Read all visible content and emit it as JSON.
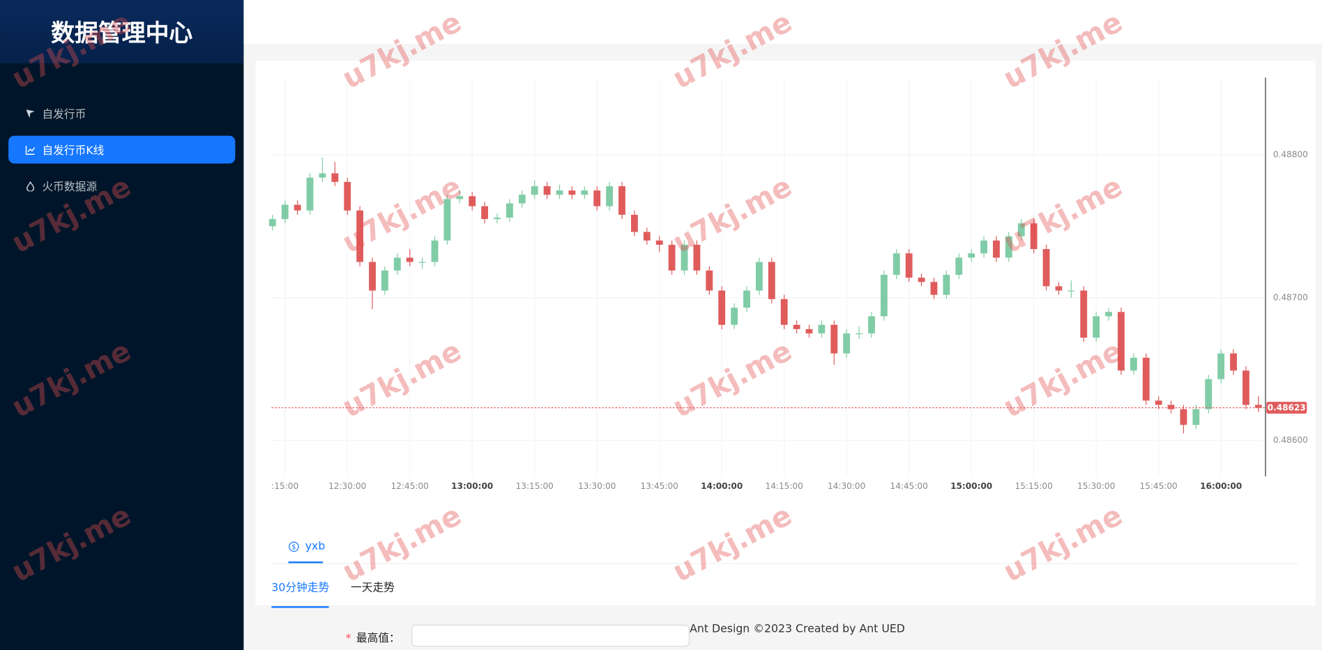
{
  "sidebar": {
    "title": "数据管理中心",
    "menu": [
      "自发行币",
      "自发行币K线",
      "火币数据源"
    ],
    "selected": 1
  },
  "watermark": "u7kj.me",
  "chart_data": {
    "type": "candlestick",
    "x": [
      "12:12:00",
      "12:15:00",
      "12:18:00",
      "12:21:00",
      "12:24:00",
      "12:27:00",
      "12:30:00",
      "12:33:00",
      "12:36:00",
      "12:39:00",
      "12:42:00",
      "12:45:00",
      "12:48:00",
      "12:51:00",
      "12:54:00",
      "12:57:00",
      "13:00:00",
      "13:03:00",
      "13:06:00",
      "13:09:00",
      "13:12:00",
      "13:15:00",
      "13:18:00",
      "13:21:00",
      "13:24:00",
      "13:27:00",
      "13:30:00",
      "13:33:00",
      "13:36:00",
      "13:39:00",
      "13:42:00",
      "13:45:00",
      "13:48:00",
      "13:51:00",
      "13:54:00",
      "13:57:00",
      "14:00:00",
      "14:03:00",
      "14:06:00",
      "14:09:00",
      "14:12:00",
      "14:15:00",
      "14:18:00",
      "14:21:00",
      "14:24:00",
      "14:27:00",
      "14:30:00",
      "14:33:00",
      "14:36:00",
      "14:39:00",
      "14:42:00",
      "14:45:00",
      "14:48:00",
      "14:51:00",
      "14:54:00",
      "14:57:00",
      "15:00:00",
      "15:03:00",
      "15:06:00",
      "15:09:00",
      "15:12:00",
      "15:15:00",
      "15:18:00",
      "15:21:00",
      "15:24:00",
      "15:27:00",
      "15:30:00",
      "15:33:00",
      "15:36:00",
      "15:39:00",
      "15:42:00",
      "15:45:00",
      "15:48:00",
      "15:51:00",
      "15:54:00",
      "15:57:00",
      "16:00:00",
      "16:03:00",
      "16:06:00",
      "16:09:00"
    ],
    "open": [
      0.4875,
      0.48755,
      0.48765,
      0.48761,
      0.48784,
      0.48787,
      0.48781,
      0.48761,
      0.48725,
      0.48705,
      0.48719,
      0.48728,
      0.48725,
      0.48725,
      0.4874,
      0.48769,
      0.48771,
      0.48764,
      0.48755,
      0.48756,
      0.48766,
      0.48772,
      0.48778,
      0.48772,
      0.48775,
      0.48772,
      0.48775,
      0.48764,
      0.48778,
      0.48758,
      0.48746,
      0.4874,
      0.48737,
      0.48719,
      0.48737,
      0.48719,
      0.48705,
      0.48681,
      0.48693,
      0.48705,
      0.48725,
      0.48699,
      0.48681,
      0.48678,
      0.48675,
      0.48681,
      0.48661,
      0.48675,
      0.48675,
      0.48687,
      0.48716,
      0.48731,
      0.48714,
      0.48711,
      0.48702,
      0.48716,
      0.48728,
      0.48731,
      0.4874,
      0.48728,
      0.48743,
      0.48752,
      0.48734,
      0.48708,
      0.48705,
      0.48705,
      0.48672,
      0.48687,
      0.4869,
      0.48649,
      0.48658,
      0.48628,
      0.48625,
      0.48622,
      0.48611,
      0.48622,
      0.48643,
      0.48661,
      0.48649,
      0.48625
    ],
    "high": [
      0.48758,
      0.48768,
      0.48768,
      0.48787,
      0.48798,
      0.48795,
      0.48784,
      0.48764,
      0.48728,
      0.48722,
      0.48731,
      0.48734,
      0.48728,
      0.48743,
      0.48772,
      0.48775,
      0.48774,
      0.48767,
      0.48759,
      0.48769,
      0.48775,
      0.48782,
      0.48781,
      0.48779,
      0.48778,
      0.48778,
      0.48778,
      0.48781,
      0.48781,
      0.48761,
      0.48749,
      0.48743,
      0.4874,
      0.4874,
      0.4874,
      0.48722,
      0.48708,
      0.48696,
      0.48708,
      0.48728,
      0.48728,
      0.48702,
      0.48684,
      0.48681,
      0.48684,
      0.48684,
      0.48678,
      0.4868,
      0.4869,
      0.48719,
      0.48734,
      0.48734,
      0.48717,
      0.48714,
      0.48719,
      0.48731,
      0.48734,
      0.48743,
      0.48743,
      0.48746,
      0.48755,
      0.48755,
      0.48737,
      0.48711,
      0.48712,
      0.48708,
      0.4869,
      0.48693,
      0.48693,
      0.48661,
      0.48661,
      0.48631,
      0.48628,
      0.48625,
      0.48625,
      0.48646,
      0.48664,
      0.48664,
      0.48652,
      0.48631
    ],
    "low": [
      0.48747,
      0.48752,
      0.48758,
      0.48758,
      0.48781,
      0.48778,
      0.48758,
      0.48722,
      0.48692,
      0.48702,
      0.48716,
      0.48722,
      0.4872,
      0.48722,
      0.48737,
      0.48766,
      0.48761,
      0.48752,
      0.48752,
      0.48753,
      0.48763,
      0.48769,
      0.48769,
      0.48769,
      0.48769,
      0.48769,
      0.48761,
      0.48761,
      0.48755,
      0.48743,
      0.48737,
      0.48732,
      0.48716,
      0.48716,
      0.48716,
      0.48702,
      0.48678,
      0.48678,
      0.4869,
      0.48702,
      0.48696,
      0.48678,
      0.48675,
      0.48672,
      0.48672,
      0.48653,
      0.48658,
      0.48671,
      0.48672,
      0.48684,
      0.48713,
      0.48711,
      0.48708,
      0.48699,
      0.48699,
      0.48713,
      0.48725,
      0.48728,
      0.48725,
      0.48725,
      0.4874,
      0.48731,
      0.48705,
      0.48702,
      0.487,
      0.48669,
      0.48669,
      0.48684,
      0.48646,
      0.48646,
      0.48625,
      0.48622,
      0.48619,
      0.48605,
      0.48608,
      0.48619,
      0.4864,
      0.48646,
      0.48622,
      0.4862
    ],
    "close": [
      0.48755,
      0.48765,
      0.48761,
      0.48784,
      0.48787,
      0.48781,
      0.48761,
      0.48725,
      0.48705,
      0.48719,
      0.48728,
      0.48725,
      0.48725,
      0.4874,
      0.48769,
      0.48771,
      0.48764,
      0.48755,
      0.48756,
      0.48766,
      0.48772,
      0.48778,
      0.48772,
      0.48775,
      0.48772,
      0.48775,
      0.48764,
      0.48778,
      0.48758,
      0.48746,
      0.4874,
      0.48737,
      0.48719,
      0.48737,
      0.48719,
      0.48705,
      0.48681,
      0.48693,
      0.48705,
      0.48725,
      0.48699,
      0.48681,
      0.48678,
      0.48675,
      0.48681,
      0.48661,
      0.48675,
      0.48675,
      0.48687,
      0.48716,
      0.48731,
      0.48714,
      0.48711,
      0.48702,
      0.48716,
      0.48728,
      0.48731,
      0.4874,
      0.48728,
      0.48743,
      0.48752,
      0.48734,
      0.48708,
      0.48705,
      0.48705,
      0.48672,
      0.48687,
      0.4869,
      0.48649,
      0.48658,
      0.48628,
      0.48625,
      0.48622,
      0.48611,
      0.48622,
      0.48643,
      0.48661,
      0.48649,
      0.48625,
      0.48623
    ],
    "up_color": "#80cca6",
    "down_color": "#e05c5c",
    "xlim": [
      "12:11:45",
      "16:10:30"
    ],
    "xticks": [
      {
        "value": "12:15:00",
        "label": ":15:00"
      },
      "12:30:00",
      "12:45:00",
      "13:00:00",
      "13:15:00",
      "13:30:00",
      "13:45:00",
      "14:00:00",
      "14:15:00",
      "14:30:00",
      "14:45:00",
      "15:00:00",
      "15:15:00",
      "15:30:00",
      "15:45:00",
      "16:00:00"
    ],
    "ylim": [
      0.48575,
      0.48854
    ],
    "yticks": [
      {
        "value": 0.486,
        "label": "0.48600"
      },
      {
        "value": 0.487,
        "label": "0.48700"
      },
      {
        "value": 0.488,
        "label": "0.48800"
      }
    ],
    "current_price": {
      "value": 0.48623,
      "label": "0.48623"
    },
    "grid": true
  },
  "tabs": [
    "yxb"
  ],
  "subtabs": [
    "30分钟走势",
    "一天走势"
  ],
  "form": {
    "required_mark": "*",
    "label": "最高值："
  },
  "footer": "Ant Design ©2023 Created by Ant UED"
}
